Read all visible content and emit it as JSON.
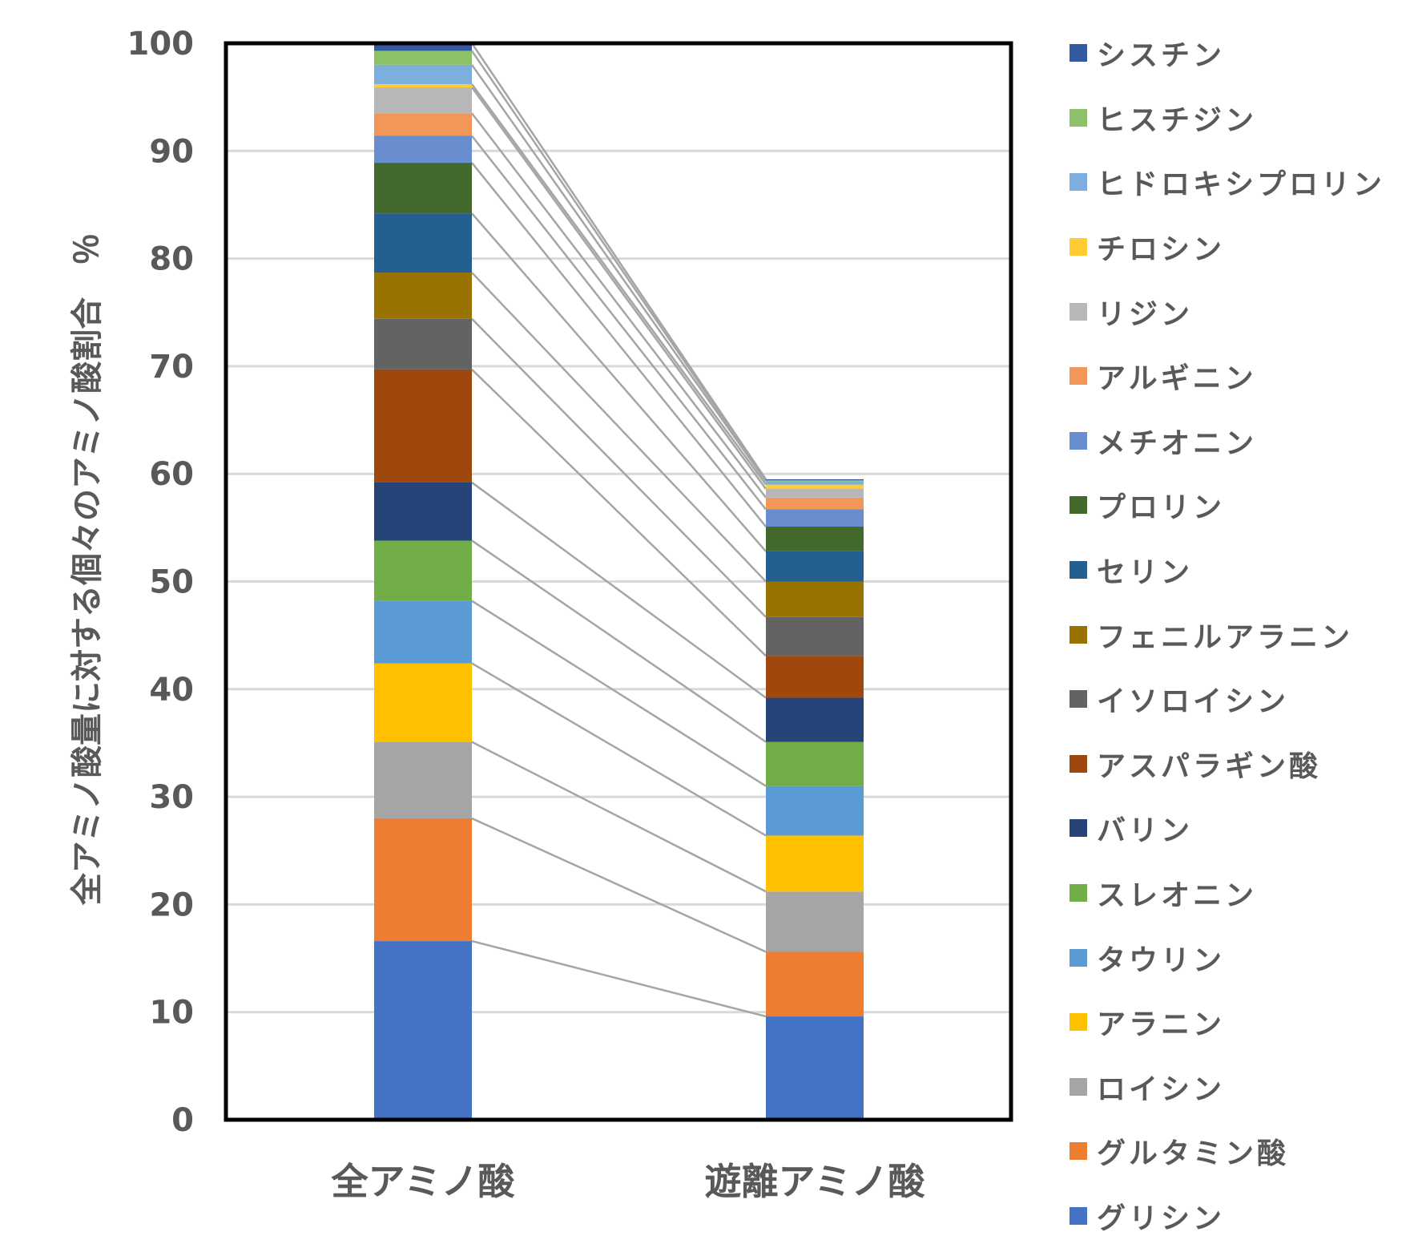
{
  "chart_data": {
    "type": "bar",
    "stacked": true,
    "title": "",
    "xlabel": "",
    "ylabel": "全アミノ酸量に対する個々のアミノ酸割合　％",
    "ylim": [
      0,
      100
    ],
    "yticks": [
      0,
      10,
      20,
      30,
      40,
      50,
      60,
      70,
      80,
      90,
      100
    ],
    "grid": true,
    "legend_position": "right",
    "series_lines": true,
    "categories": [
      "全アミノ酸",
      "遊離アミノ酸"
    ],
    "series": [
      {
        "name": "グリシン",
        "color": "#4472C4",
        "values": [
          16.6,
          9.6
        ]
      },
      {
        "name": "グルタミン酸",
        "color": "#ED7D31",
        "values": [
          11.4,
          6.0
        ]
      },
      {
        "name": "ロイシン",
        "color": "#A5A5A5",
        "values": [
          7.1,
          5.6
        ]
      },
      {
        "name": "アラニン",
        "color": "#FFC000",
        "values": [
          7.3,
          5.2
        ]
      },
      {
        "name": "タウリン",
        "color": "#5B9BD5",
        "values": [
          5.8,
          4.6
        ]
      },
      {
        "name": "スレオニン",
        "color": "#70AD47",
        "values": [
          5.6,
          4.1
        ]
      },
      {
        "name": "バリン",
        "color": "#264478",
        "values": [
          5.4,
          4.1
        ]
      },
      {
        "name": "アスパラギン酸",
        "color": "#9E480E",
        "values": [
          10.5,
          3.9
        ]
      },
      {
        "name": "イソロイシン",
        "color": "#636363",
        "values": [
          4.7,
          3.6
        ]
      },
      {
        "name": "フェニルアラニン",
        "color": "#997300",
        "values": [
          4.3,
          3.3
        ]
      },
      {
        "name": "セリン",
        "color": "#255E91",
        "values": [
          5.5,
          2.8
        ]
      },
      {
        "name": "プロリン",
        "color": "#43682B",
        "values": [
          4.7,
          2.3
        ]
      },
      {
        "name": "メチオニン",
        "color": "#698ED0",
        "values": [
          2.5,
          1.6
        ]
      },
      {
        "name": "アルギニン",
        "color": "#F1975A",
        "values": [
          2.1,
          1.1
        ]
      },
      {
        "name": "リジン",
        "color": "#B7B7B7",
        "values": [
          2.4,
          0.8
        ]
      },
      {
        "name": "チロシン",
        "color": "#FFCD33",
        "values": [
          0.3,
          0.4
        ]
      },
      {
        "name": "ヒドロキシプロリン",
        "color": "#7CAFDD",
        "values": [
          1.8,
          0.3
        ]
      },
      {
        "name": "ヒスチジン",
        "color": "#8CC168",
        "values": [
          1.3,
          0.1
        ]
      },
      {
        "name": "シスチン",
        "color": "#335AA1",
        "values": [
          0.7,
          0.1
        ]
      }
    ]
  },
  "axis": {
    "ylabel": "全アミノ酸量に対する個々のアミノ酸割合　％",
    "x_labels": [
      "全アミノ酸",
      "遊離アミノ酸"
    ]
  },
  "legend": {
    "items": [
      {
        "label": "シスチン",
        "color": "#335AA1"
      },
      {
        "label": "ヒスチジン",
        "color": "#8CC168"
      },
      {
        "label": "ヒドロキシプロリン",
        "color": "#7CAFDD"
      },
      {
        "label": "チロシン",
        "color": "#FFCD33"
      },
      {
        "label": "リジン",
        "color": "#B7B7B7"
      },
      {
        "label": "アルギニン",
        "color": "#F1975A"
      },
      {
        "label": "メチオニン",
        "color": "#698ED0"
      },
      {
        "label": "プロリン",
        "color": "#43682B"
      },
      {
        "label": "セリン",
        "color": "#255E91"
      },
      {
        "label": "フェニルアラニン",
        "color": "#997300"
      },
      {
        "label": "イソロイシン",
        "color": "#636363"
      },
      {
        "label": "アスパラギン酸",
        "color": "#9E480E"
      },
      {
        "label": "バリン",
        "color": "#264478"
      },
      {
        "label": "スレオニン",
        "color": "#70AD47"
      },
      {
        "label": "タウリン",
        "color": "#5B9BD5"
      },
      {
        "label": "アラニン",
        "color": "#FFC000"
      },
      {
        "label": "ロイシン",
        "color": "#A5A5A5"
      },
      {
        "label": "グルタミン酸",
        "color": "#ED7D31"
      },
      {
        "label": "グリシン",
        "color": "#4472C4"
      }
    ]
  }
}
